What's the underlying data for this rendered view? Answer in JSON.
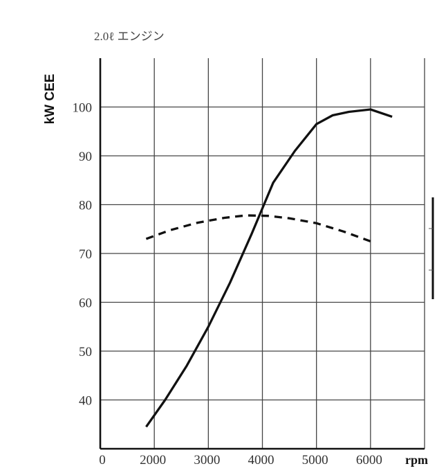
{
  "chart_data": {
    "type": "line",
    "title": "2.0ℓ エンジン",
    "ylabel": "kW CEE",
    "xunit": "rpm",
    "xlim": [
      1000,
      7000
    ],
    "ylim": [
      30,
      110
    ],
    "x_origin_label": "0",
    "x_ticks": [
      2000,
      3000,
      4000,
      5000,
      6000
    ],
    "y_ticks": [
      40,
      50,
      60,
      70,
      80,
      90,
      100
    ],
    "grid": true,
    "series": [
      {
        "style": "solid",
        "x": [
          1850,
          2200,
          2600,
          3000,
          3400,
          3800,
          4200,
          4600,
          5000,
          5300,
          5600,
          6000,
          6400
        ],
        "y": [
          34.5,
          40,
          47,
          55,
          64,
          74,
          84.5,
          91,
          96.5,
          98.3,
          99,
          99.5,
          98
        ]
      },
      {
        "style": "dashed",
        "x": [
          1850,
          2300,
          2800,
          3300,
          3700,
          4100,
          4500,
          5000,
          5500,
          6050
        ],
        "y": [
          73,
          74.8,
          76.3,
          77.3,
          77.8,
          77.7,
          77.2,
          76.2,
          74.5,
          72.3
        ]
      }
    ]
  }
}
